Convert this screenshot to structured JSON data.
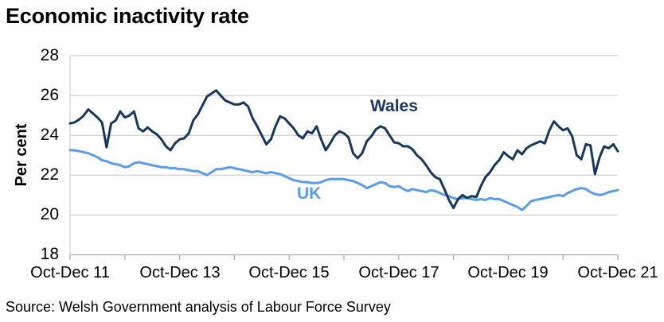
{
  "title": "Economic inactivity rate",
  "source": "Source: Welsh Government analysis of Labour Force Survey",
  "colors": {
    "wales": "#17375E",
    "uk": "#5C9CE6",
    "gridline": "#C3C3C3",
    "axis": "#ABABAB",
    "text": "#000000",
    "background": "#FFFFFF"
  },
  "chart_data": {
    "type": "line",
    "title": "Economic inactivity rate",
    "ylabel": "Per cent",
    "ylim": [
      18,
      28
    ],
    "y_ticks": [
      28,
      26,
      24,
      22,
      20,
      18
    ],
    "grid": "horizontal",
    "legend": "inline-labels",
    "x_tick_labels": [
      "Oct-Dec 11",
      "Oct-Dec 13",
      "Oct-Dec 15",
      "Oct-Dec 17",
      "Oct-Dec 19",
      "Oct-Dec 21"
    ],
    "x_tick_interval_months": 12,
    "x_label_interval_months": 24,
    "x_note": "monthly rolling three-month periods from Oct-Dec 2011 to Oct-Dec 2021",
    "series": [
      {
        "name": "Wales",
        "color": "#17375E",
        "values": [
          24.6,
          24.65,
          24.8,
          25.0,
          25.3,
          25.1,
          24.9,
          24.65,
          23.4,
          24.6,
          24.75,
          25.2,
          24.9,
          25.0,
          25.2,
          24.35,
          24.2,
          24.4,
          24.2,
          24.05,
          23.8,
          23.45,
          23.25,
          23.6,
          23.8,
          23.85,
          24.1,
          24.75,
          25.05,
          25.5,
          25.95,
          26.1,
          26.25,
          26.0,
          25.75,
          25.65,
          25.55,
          25.55,
          25.65,
          25.45,
          24.85,
          24.45,
          24.0,
          23.55,
          23.8,
          24.45,
          24.95,
          24.85,
          24.6,
          24.35,
          24.0,
          23.85,
          24.2,
          24.1,
          24.45,
          23.8,
          23.25,
          23.6,
          24.0,
          24.2,
          24.1,
          23.9,
          23.1,
          22.85,
          23.1,
          23.7,
          23.95,
          24.3,
          24.45,
          24.35,
          24.0,
          23.65,
          23.6,
          23.45,
          23.45,
          23.3,
          23.0,
          22.8,
          22.5,
          22.15,
          21.9,
          21.8,
          21.3,
          20.75,
          20.35,
          20.8,
          21.0,
          20.85,
          20.95,
          20.9,
          21.45,
          21.9,
          22.15,
          22.5,
          22.75,
          23.15,
          22.95,
          22.8,
          23.25,
          23.05,
          23.35,
          23.5,
          23.6,
          23.7,
          23.6,
          24.25,
          24.7,
          24.45,
          24.25,
          24.35,
          23.95,
          23.0,
          22.8,
          23.55,
          23.5,
          22.05,
          22.9,
          23.45,
          23.35,
          23.55,
          23.2
        ]
      },
      {
        "name": "UK",
        "color": "#5C9CE6",
        "values": [
          23.25,
          23.25,
          23.2,
          23.15,
          23.1,
          23.0,
          22.9,
          22.75,
          22.7,
          22.6,
          22.55,
          22.5,
          22.4,
          22.45,
          22.6,
          22.65,
          22.6,
          22.55,
          22.5,
          22.45,
          22.4,
          22.4,
          22.35,
          22.35,
          22.3,
          22.3,
          22.25,
          22.2,
          22.2,
          22.1,
          22.0,
          22.15,
          22.3,
          22.3,
          22.35,
          22.4,
          22.35,
          22.3,
          22.25,
          22.2,
          22.15,
          22.2,
          22.15,
          22.1,
          22.15,
          22.1,
          22.05,
          21.95,
          21.85,
          21.75,
          21.7,
          21.65,
          21.65,
          21.6,
          21.6,
          21.65,
          21.75,
          21.8,
          21.8,
          21.8,
          21.8,
          21.75,
          21.7,
          21.6,
          21.5,
          21.35,
          21.45,
          21.55,
          21.65,
          21.6,
          21.45,
          21.4,
          21.45,
          21.3,
          21.2,
          21.3,
          21.25,
          21.2,
          21.15,
          21.25,
          21.2,
          21.1,
          21.0,
          20.95,
          20.85,
          20.8,
          20.85,
          20.85,
          20.8,
          20.75,
          20.8,
          20.75,
          20.85,
          20.8,
          20.8,
          20.7,
          20.6,
          20.5,
          20.4,
          20.25,
          20.45,
          20.7,
          20.75,
          20.8,
          20.85,
          20.9,
          20.95,
          21.0,
          20.95,
          21.1,
          21.2,
          21.3,
          21.35,
          21.3,
          21.15,
          21.05,
          21.0,
          21.05,
          21.15,
          21.2,
          21.25
        ]
      }
    ]
  }
}
